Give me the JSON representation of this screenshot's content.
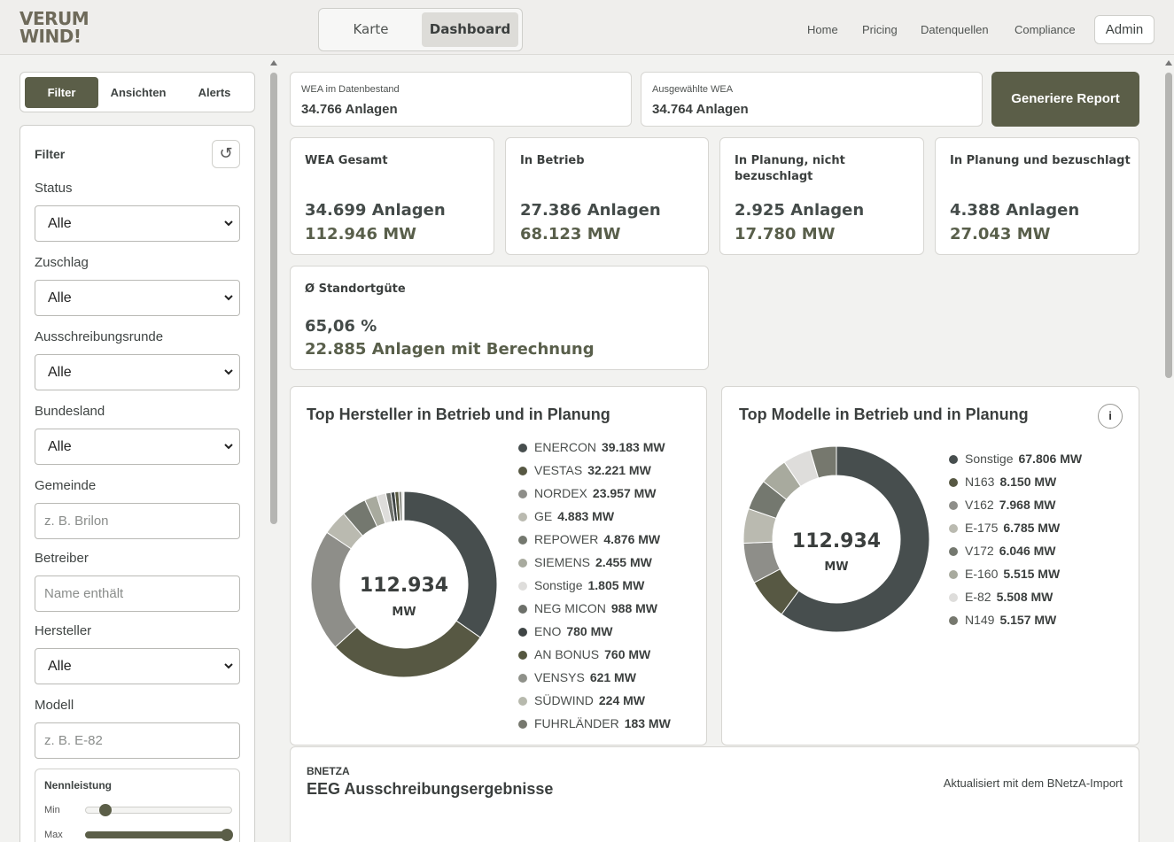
{
  "header": {
    "logo_line1": "VERUM",
    "logo_line2": "WIND!",
    "view_toggle": [
      "Karte",
      "Dashboard"
    ],
    "nav": [
      "Home",
      "Pricing",
      "Datenquellen",
      "Compliance"
    ],
    "admin": "Admin"
  },
  "sidebar": {
    "tabs": [
      "Filter",
      "Ansichten",
      "Alerts"
    ],
    "panel_title": "Filter",
    "reset_icon": "↺",
    "fields": {
      "status": {
        "label": "Status",
        "value": "Alle"
      },
      "zuschlag": {
        "label": "Zuschlag",
        "value": "Alle"
      },
      "runde": {
        "label": "Ausschreibungsrunde",
        "value": "Alle"
      },
      "bundesland": {
        "label": "Bundesland",
        "value": "Alle"
      },
      "gemeinde": {
        "label": "Gemeinde",
        "placeholder": "z. B. Brilon"
      },
      "betreiber": {
        "label": "Betreiber",
        "placeholder": "Name enthält"
      },
      "hersteller": {
        "label": "Hersteller",
        "value": "Alle"
      },
      "modell": {
        "label": "Modell",
        "placeholder": "z. B. E-82"
      }
    },
    "nennleistung": {
      "title": "Nennleistung",
      "min_label": "Min",
      "max_label": "Max",
      "min_position": 0.1,
      "max_position": 1.0
    }
  },
  "main": {
    "wea_bestand": {
      "label": "WEA im Datenbestand",
      "value": "34.766 Anlagen"
    },
    "wea_ausgewaehlt": {
      "label": "Ausgewählte WEA",
      "value": "34.764 Anlagen"
    },
    "report_button": "Generiere Report",
    "stats": [
      {
        "title": "WEA Gesamt",
        "v1": "34.699 Anlagen",
        "v2": "112.946 MW"
      },
      {
        "title": "In Betrieb",
        "v1": "27.386 Anlagen",
        "v2": "68.123 MW"
      },
      {
        "title": "In Planung, nicht bezuschlagt",
        "v1": "2.925 Anlagen",
        "v2": "17.780 MW"
      },
      {
        "title": "In Planung und bezuschlagt",
        "v1": "4.388 Anlagen",
        "v2": "27.043 MW"
      }
    ],
    "standort": {
      "title": "Ø Standortgüte",
      "v1": "65,06 %",
      "v2": "22.885 Anlagen mit Berechnung"
    },
    "eeg": {
      "source": "BNETZA",
      "title": "EEG Ausschreibungsergebnisse",
      "note": "Aktualisiert mit dem BNetzA-Import"
    }
  },
  "chart_data": [
    {
      "type": "pie",
      "title": "Top Hersteller in Betrieb und in Planung",
      "center_value": "112.934",
      "center_unit": "MW",
      "categories": [
        "ENERCON",
        "VESTAS",
        "NORDEX",
        "GE",
        "REPOWER",
        "SIEMENS",
        "Sonstige",
        "NEG MICON",
        "ENO",
        "AN BONUS",
        "VENSYS",
        "SÜDWIND",
        "FUHRLÄNDER"
      ],
      "value_labels": [
        "39.183 MW",
        "32.221 MW",
        "23.957 MW",
        "4.883 MW",
        "4.876 MW",
        "2.455 MW",
        "1.805 MW",
        "988 MW",
        "780 MW",
        "760 MW",
        "621 MW",
        "224 MW",
        "183 MW"
      ],
      "values": [
        39183,
        32221,
        23957,
        4883,
        4876,
        2455,
        1805,
        988,
        780,
        760,
        621,
        224,
        183
      ],
      "colors": [
        "#474e4e",
        "#575843",
        "#8e8e89",
        "#babab0",
        "#74786f",
        "#a8aa9e",
        "#dedddb",
        "#6d706a",
        "#3f4545",
        "#55573f",
        "#8f918a",
        "#b7b9ad",
        "#76786e"
      ]
    },
    {
      "type": "pie",
      "title": "Top Modelle in Betrieb und in Planung",
      "center_value": "112.934",
      "center_unit": "MW",
      "categories": [
        "Sonstige",
        "N163",
        "V162",
        "E-175",
        "V172",
        "E-160",
        "E-82",
        "N149"
      ],
      "value_labels": [
        "67.806 MW",
        "8.150 MW",
        "7.968 MW",
        "6.785 MW",
        "6.046 MW",
        "5.515 MW",
        "5.508 MW",
        "5.157 MW"
      ],
      "values": [
        67806,
        8150,
        7968,
        6785,
        6046,
        5515,
        5508,
        5157
      ],
      "colors": [
        "#474e4e",
        "#575843",
        "#8e8e89",
        "#babab0",
        "#74786f",
        "#a8aa9e",
        "#dedddb",
        "#76786e"
      ]
    }
  ]
}
